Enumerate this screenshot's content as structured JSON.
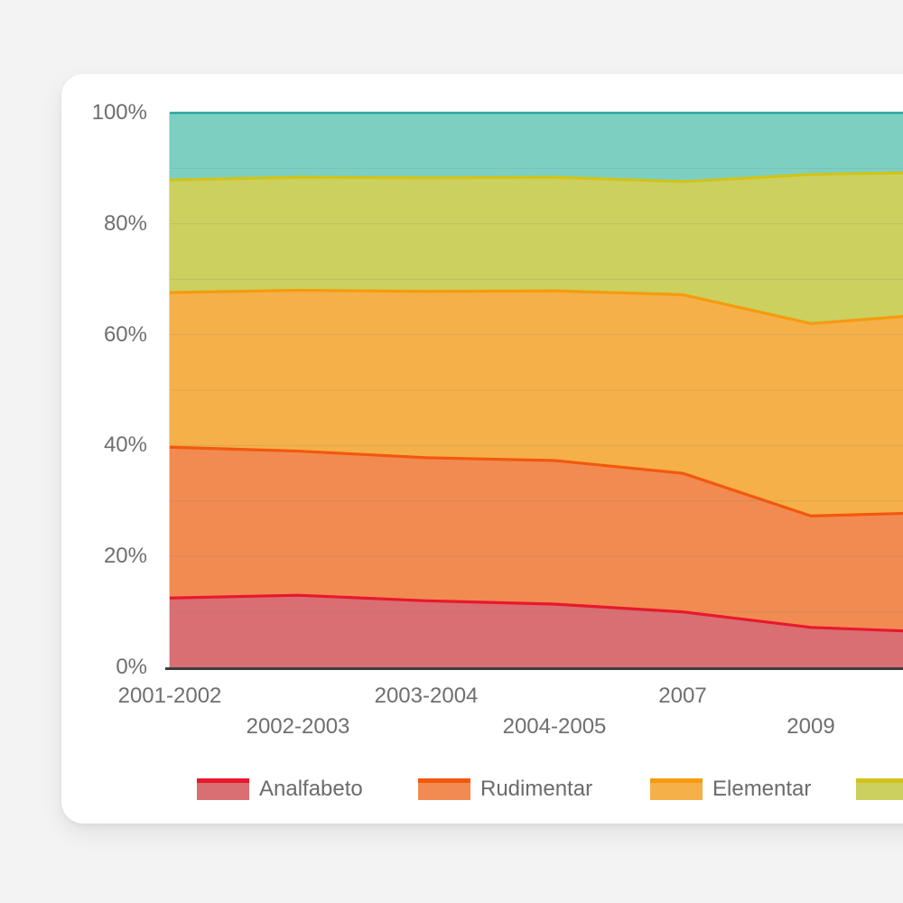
{
  "page": {
    "background": "#f3f3f4",
    "card_background": "#ffffff"
  },
  "chart_data": {
    "type": "area",
    "stacked": true,
    "percent": true,
    "title": "",
    "xlabel": "",
    "ylabel": "",
    "x_labels": [
      "2001-2002",
      "2002-2003",
      "2003-2004",
      "2004-2005",
      "2007",
      "2009"
    ],
    "y_tick_labels": [
      "0%",
      "20%",
      "40%",
      "60%",
      "80%",
      "100%"
    ],
    "y_tick_values": [
      0,
      20,
      40,
      60,
      80,
      100
    ],
    "ylim": [
      0,
      100
    ],
    "grid": true,
    "legend_position": "bottom",
    "right_edge_clipped": true,
    "right_edge_cumulative": [
      6.5,
      27.8,
      63.4,
      89.2,
      100
    ],
    "series": [
      {
        "name": "Analfabeto",
        "line": "#e8182d",
        "fill": "#d96f72",
        "values": [
          12.5,
          13.0,
          12.0,
          11.4,
          10.0,
          7.2
        ]
      },
      {
        "name": "Rudimentar",
        "line": "#f2580e",
        "fill": "#f18b51",
        "values": [
          27.2,
          26.0,
          25.8,
          25.9,
          25.0,
          20.1
        ]
      },
      {
        "name": "Elementar",
        "line": "#f59b0e",
        "fill": "#f5b04a",
        "values": [
          27.9,
          29.0,
          30.0,
          30.6,
          32.2,
          34.7
        ]
      },
      {
        "name": "",
        "line": "#d2c319",
        "fill": "#ccd05f",
        "values": [
          20.3,
          20.4,
          20.5,
          20.5,
          20.4,
          26.9
        ]
      },
      {
        "name": "",
        "line": "#2aa89d",
        "fill": "#7bd0c2",
        "values": [
          12.1,
          11.6,
          11.7,
          11.6,
          12.4,
          11.1
        ]
      }
    ],
    "legend": [
      {
        "label": "Analfabeto"
      },
      {
        "label": "Rudimentar"
      },
      {
        "label": "Elementar"
      },
      {
        "label": ""
      }
    ]
  },
  "colors": {
    "axis_line": "#3d3d3d",
    "y_axis_line": "#d5d5d5",
    "grid_line": "rgba(130,130,130,0.22)",
    "tick_text": "#6f6f6f"
  }
}
